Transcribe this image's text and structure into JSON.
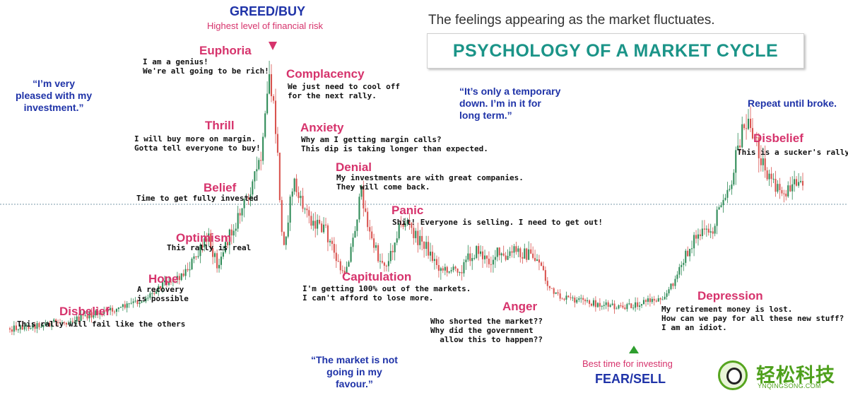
{
  "chart_data": {
    "type": "line",
    "x_unit": "time (unlabeled)",
    "guide_line": "dotted horizontal reference line at the Belief level",
    "price_path": [
      [
        0,
        88
      ],
      [
        3,
        87
      ],
      [
        6,
        86
      ],
      [
        9,
        84
      ],
      [
        12,
        82
      ],
      [
        14,
        80
      ],
      [
        15,
        79
      ],
      [
        17,
        74
      ],
      [
        19,
        72
      ],
      [
        21,
        65
      ],
      [
        22,
        60
      ],
      [
        23,
        68
      ],
      [
        25,
        56
      ],
      [
        26,
        50
      ],
      [
        27,
        43
      ],
      [
        28,
        35
      ],
      [
        28.8,
        10
      ],
      [
        29.6,
        30
      ],
      [
        30.3,
        65
      ],
      [
        31.5,
        42
      ],
      [
        32,
        48
      ],
      [
        33.5,
        55
      ],
      [
        35,
        58
      ],
      [
        36,
        65
      ],
      [
        37,
        72
      ],
      [
        38,
        62
      ],
      [
        39,
        46
      ],
      [
        40,
        60
      ],
      [
        41,
        67
      ],
      [
        42,
        68
      ],
      [
        43,
        58
      ],
      [
        44,
        55
      ],
      [
        45,
        60
      ],
      [
        46,
        62
      ],
      [
        47,
        67
      ],
      [
        48,
        70
      ],
      [
        49,
        70
      ],
      [
        50,
        70
      ],
      [
        51,
        66
      ],
      [
        52,
        64
      ],
      [
        53,
        68
      ],
      [
        54,
        65
      ],
      [
        55,
        67
      ],
      [
        56,
        64
      ],
      [
        57,
        65
      ],
      [
        58,
        66
      ],
      [
        59,
        68
      ],
      [
        59.5,
        74
      ],
      [
        60.5,
        78
      ],
      [
        62,
        79
      ],
      [
        64,
        80
      ],
      [
        66,
        81
      ],
      [
        68,
        82
      ],
      [
        70,
        80
      ],
      [
        72,
        79
      ],
      [
        73,
        77
      ],
      [
        74,
        72
      ],
      [
        76,
        60
      ],
      [
        78,
        58
      ],
      [
        79,
        48
      ],
      [
        80,
        44
      ],
      [
        81,
        30
      ],
      [
        82,
        25
      ],
      [
        83,
        32
      ],
      [
        84,
        41
      ],
      [
        85,
        45
      ],
      [
        86,
        47
      ],
      [
        87,
        43
      ],
      [
        88,
        45
      ]
    ],
    "series": [
      {
        "values": []
      }
    ]
  },
  "subtitle": "The feelings appearing as the market fluctuates.",
  "main_title": "PSYCHOLOGY OF A MARKET CYCLE",
  "greed": {
    "title": "GREED/BUY",
    "sub": "Highest level of financial risk"
  },
  "fear": {
    "title": "FEAR/SELL",
    "sub": "Best time for investing"
  },
  "repeat": "Repeat until broke.",
  "stages": {
    "disbelief1": {
      "title": "Disbelief",
      "desc": "This rally will fail like the others"
    },
    "hope": {
      "title": "Hope",
      "desc": "A recovery\nis possible"
    },
    "optimism": {
      "title": "Optimism",
      "desc": "This rally is real"
    },
    "belief": {
      "title": "Belief",
      "desc": "Time to get fully invested"
    },
    "thrill": {
      "title": "Thrill",
      "desc": "I will buy more on margin.\nGotta tell everyone to buy!"
    },
    "euphoria": {
      "title": "Euphoria",
      "desc": "I am a genius!\nWe're all going to be rich!"
    },
    "complacency": {
      "title": "Complacency",
      "desc": "We just need to cool off\nfor the next rally."
    },
    "anxiety": {
      "title": "Anxiety",
      "desc": "Why am I getting margin calls?\nThis dip is taking longer than expected."
    },
    "denial": {
      "title": "Denial",
      "desc": "My investments are with great companies.\nThey will come back."
    },
    "panic": {
      "title": "Panic",
      "desc": "Shit! Everyone is selling. I need to get out!"
    },
    "capitulation": {
      "title": "Capitulation",
      "desc": "I'm getting 100% out of the markets.\nI can't afford to lose more."
    },
    "anger": {
      "title": "Anger",
      "desc": "Who shorted the market??\nWhy did the government\n  allow this to happen??"
    },
    "depression": {
      "title": "Depression",
      "desc": "My retirement money is lost.\nHow can we pay for all these new stuff?\nI am an idiot."
    },
    "disbelief2": {
      "title": "Disbelief",
      "desc": "This is a sucker's rally."
    }
  },
  "quotes": {
    "pleased": "“I’m very\npleased with my\ninvestment.”",
    "temporary": "“It’s only a temporary\ndown. I’m in it for\nlong term.”",
    "not_going": "“The market is not\ngoing in my\nfavour.”"
  },
  "colors": {
    "candle_up": "#2e8b57",
    "candle_down": "#d9534f",
    "stage_title": "#d6336c",
    "quote": "#1f33a8",
    "title": "#1b9488",
    "arrow_red": "#d6336c",
    "arrow_green": "#2e9e2e"
  },
  "watermark": {
    "text": "轻松科技",
    "sub": "YNQINGSONG.COM"
  }
}
